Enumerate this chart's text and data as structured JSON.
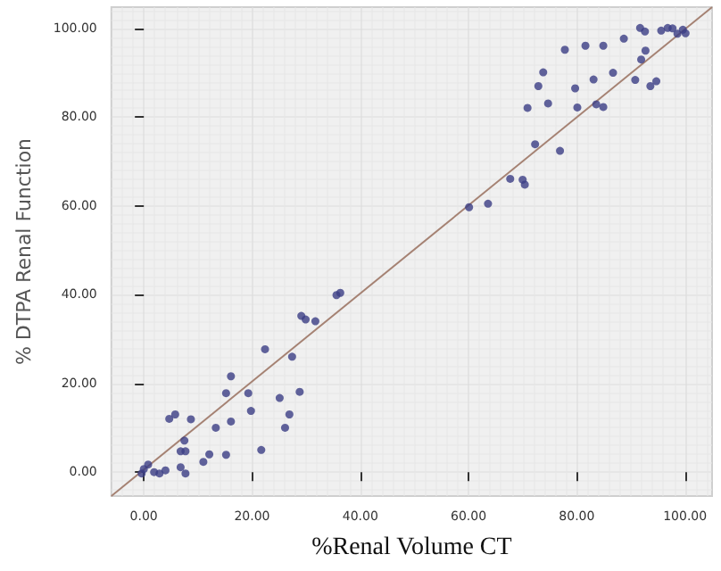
{
  "chart_data": {
    "type": "scatter",
    "xlabel": "%Renal Volume CT",
    "ylabel": "% DTPA Renal Function",
    "xlim": [
      -6,
      105
    ],
    "ylim": [
      -5.4,
      104.8
    ],
    "xticks": [
      {
        "value": 0,
        "label": "0.00"
      },
      {
        "value": 20,
        "label": "20.00"
      },
      {
        "value": 40,
        "label": "40.00"
      },
      {
        "value": 60,
        "label": "60.00"
      },
      {
        "value": 80,
        "label": "80.00"
      },
      {
        "value": 100,
        "label": "100.00"
      }
    ],
    "yticks": [
      {
        "value": 0,
        "label": "0.00"
      },
      {
        "value": 20,
        "label": "20.00"
      },
      {
        "value": 40,
        "label": "40.00"
      },
      {
        "value": 60,
        "label": "60.00"
      },
      {
        "value": 80,
        "label": "80.00"
      },
      {
        "value": 100,
        "label": "100.00"
      }
    ],
    "grid": true,
    "marker": "circle",
    "series": [
      {
        "color": "#3b3d85",
        "x": [
          0,
          0.8,
          1.9,
          2.9,
          4,
          -0.4,
          4.7,
          5.8,
          6.8,
          7.5,
          7.7,
          6.8,
          7.7,
          8.7,
          11,
          12.1,
          13.3,
          15.2,
          15.2,
          16.1,
          16.1,
          19.3,
          19.8,
          21.7,
          22.4,
          25.1,
          26.1,
          26.9,
          27.4,
          28.8,
          29.1,
          29.9,
          31.7,
          35.6,
          36.3,
          60.1,
          63.6,
          67.7,
          70,
          70.4,
          72.3,
          70.9,
          72.9,
          73.8,
          74.7,
          76.9,
          77.8,
          79.7,
          80.1,
          81.6,
          83.1,
          83.6,
          84.9,
          84.9,
          86.7,
          88.7,
          90.8,
          91.7,
          92.6,
          91.9,
          92.7,
          93.6,
          94.7,
          95.6,
          96.8,
          97.7,
          98.6,
          99.6,
          100.1
        ],
        "values": [
          0.7,
          1.7,
          0,
          -0.3,
          0.4,
          -0.3,
          12,
          13,
          4.7,
          7.1,
          4.7,
          1.1,
          -0.3,
          11.9,
          2.3,
          4,
          10,
          17.8,
          3.9,
          21.6,
          11.4,
          17.8,
          13.8,
          5,
          27.7,
          16.7,
          10,
          13,
          26,
          18.1,
          35.2,
          34.4,
          34,
          39.9,
          40.4,
          59.7,
          60.5,
          66.1,
          65.9,
          64.8,
          73.9,
          82.1,
          87,
          90.1,
          83.1,
          72.4,
          95.2,
          86.5,
          82.2,
          96.1,
          88.5,
          82.9,
          82.3,
          96.1,
          90,
          97.7,
          88.4,
          100.1,
          99.3,
          93,
          95,
          87,
          88.1,
          99.5,
          100.1,
          100,
          98.8,
          99.7,
          98.9
        ]
      },
      {
        "type": "line",
        "color": "#a58273",
        "marker": "none",
        "x": [
          -6,
          105
        ],
        "values": [
          -5.4,
          104.8
        ]
      }
    ]
  }
}
